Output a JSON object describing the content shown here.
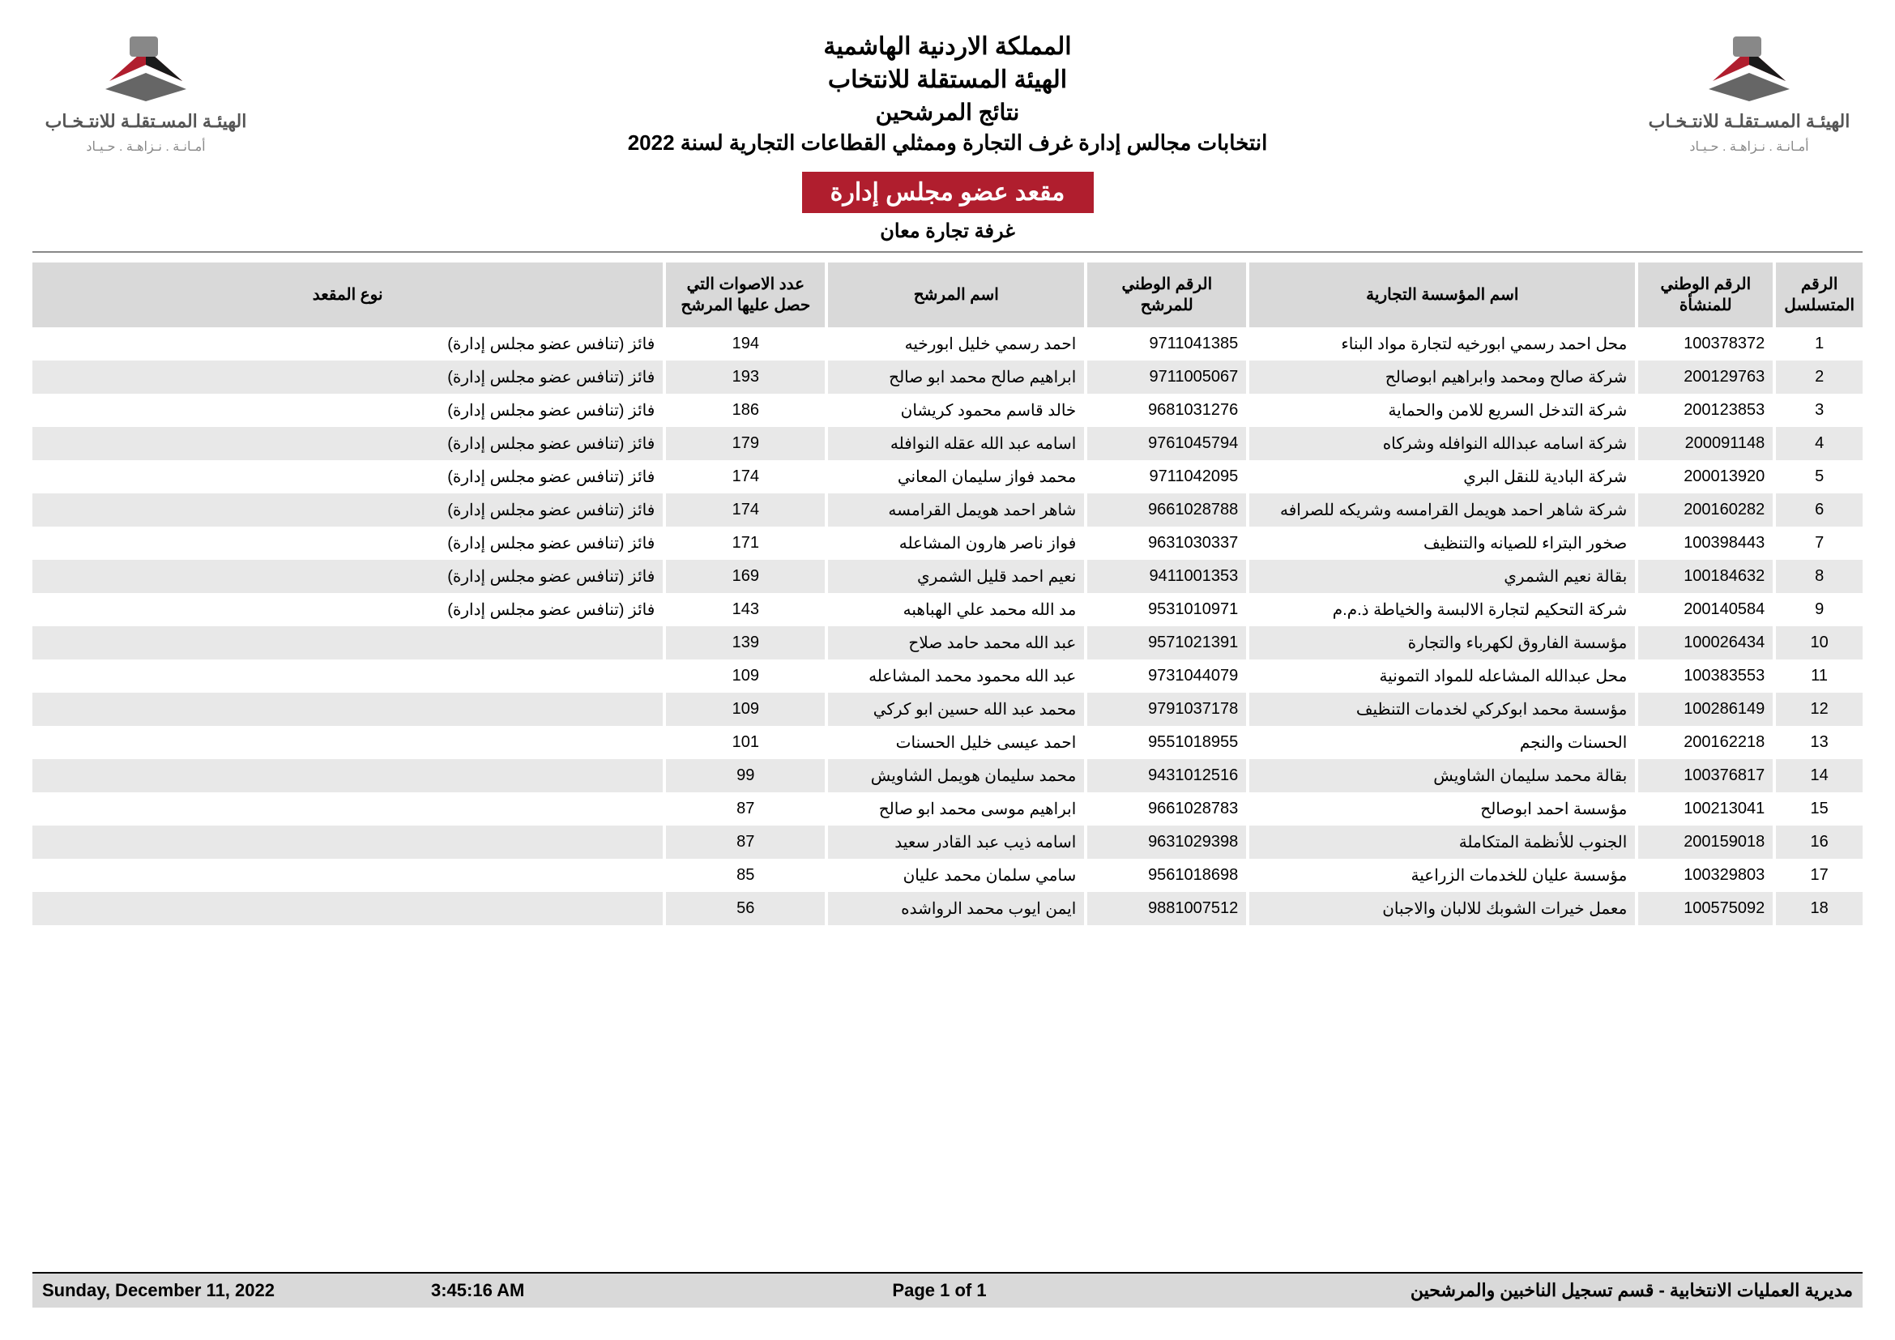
{
  "header": {
    "kingdom": "المملكة الاردنية الهاشمية",
    "commission": "الهيئة المستقلة للانتخاب",
    "results": "نتائج المرشحين",
    "election": "انتخابات مجالس إدارة غرف التجارة وممثلي القطاعات التجارية لسنة 2022",
    "logo_main": "الهيئـة المسـتقلـة\nللانتـخـاب",
    "logo_sub": "أمـانـة . نـزاهـة . حـيـاد"
  },
  "red_bar": "مقعد عضو مجلس إدارة",
  "chamber": "غرفة تجارة معان",
  "columns": {
    "serial": "الرقم المتسلسل",
    "est_natid": "الرقم الوطني للمنشأة",
    "est_name": "اسم المؤسسة التجارية",
    "cand_natid": "الرقم الوطني للمرشح",
    "cand_name": "اسم المرشح",
    "votes": "عدد الاصوات التي حصل عليها المرشح",
    "seat_type": "نوع المقعد"
  },
  "rows": [
    {
      "serial": "1",
      "est_natid": "100378372",
      "est_name": "محل احمد رسمي ابورخيه لتجارة مواد البناء",
      "cand_natid": "9711041385",
      "cand_name": "احمد رسمي خليل ابورخيه",
      "votes": "194",
      "seat_type": "فائز (تنافس عضو مجلس إدارة)"
    },
    {
      "serial": "2",
      "est_natid": "200129763",
      "est_name": "شركة صالح ومحمد وابراهيم ابوصالح",
      "cand_natid": "9711005067",
      "cand_name": "ابراهيم صالح محمد ابو صالح",
      "votes": "193",
      "seat_type": "فائز (تنافس عضو مجلس إدارة)"
    },
    {
      "serial": "3",
      "est_natid": "200123853",
      "est_name": "شركة التدخل السريع للامن والحماية",
      "cand_natid": "9681031276",
      "cand_name": "خالد قاسم محمود كريشان",
      "votes": "186",
      "seat_type": "فائز (تنافس عضو مجلس إدارة)"
    },
    {
      "serial": "4",
      "est_natid": "200091148",
      "est_name": "شركة اسامه عبدالله النوافله وشركاه",
      "cand_natid": "9761045794",
      "cand_name": "اسامه عبد الله عقله النوافله",
      "votes": "179",
      "seat_type": "فائز (تنافس عضو مجلس إدارة)"
    },
    {
      "serial": "5",
      "est_natid": "200013920",
      "est_name": "شركة البادية للنقل البري",
      "cand_natid": "9711042095",
      "cand_name": "محمد فواز سليمان المعاني",
      "votes": "174",
      "seat_type": "فائز (تنافس عضو مجلس إدارة)"
    },
    {
      "serial": "6",
      "est_natid": "200160282",
      "est_name": "شركة شاهر احمد هويمل القرامسه وشريكه للصرافه",
      "cand_natid": "9661028788",
      "cand_name": "شاهر احمد هويمل القرامسه",
      "votes": "174",
      "seat_type": "فائز (تنافس عضو مجلس إدارة)"
    },
    {
      "serial": "7",
      "est_natid": "100398443",
      "est_name": "صخور البتراء للصيانه والتنظيف",
      "cand_natid": "9631030337",
      "cand_name": "فواز ناصر هارون المشاعله",
      "votes": "171",
      "seat_type": "فائز (تنافس عضو مجلس إدارة)"
    },
    {
      "serial": "8",
      "est_natid": "100184632",
      "est_name": "بقالة نعيم الشمري",
      "cand_natid": "9411001353",
      "cand_name": "نعيم احمد قليل الشمري",
      "votes": "169",
      "seat_type": "فائز (تنافس عضو مجلس إدارة)"
    },
    {
      "serial": "9",
      "est_natid": "200140584",
      "est_name": "شركة التحكيم لتجارة الالبسة والخياطة ذ.م.م",
      "cand_natid": "9531010971",
      "cand_name": "مد الله محمد علي الهباهبه",
      "votes": "143",
      "seat_type": "فائز (تنافس عضو مجلس إدارة)"
    },
    {
      "serial": "10",
      "est_natid": "100026434",
      "est_name": "مؤسسة الفاروق لكهرباء والتجارة",
      "cand_natid": "9571021391",
      "cand_name": "عبد الله محمد حامد صلاح",
      "votes": "139",
      "seat_type": ""
    },
    {
      "serial": "11",
      "est_natid": "100383553",
      "est_name": "محل عبدالله المشاعله للمواد التمونية",
      "cand_natid": "9731044079",
      "cand_name": "عبد الله محمود محمد المشاعله",
      "votes": "109",
      "seat_type": ""
    },
    {
      "serial": "12",
      "est_natid": "100286149",
      "est_name": "مؤسسة محمد ابوكركي لخدمات التنظيف",
      "cand_natid": "9791037178",
      "cand_name": "محمد عبد الله حسين ابو كركي",
      "votes": "109",
      "seat_type": ""
    },
    {
      "serial": "13",
      "est_natid": "200162218",
      "est_name": "الحسنات والنجم",
      "cand_natid": "9551018955",
      "cand_name": "احمد عيسى خليل الحسنات",
      "votes": "101",
      "seat_type": ""
    },
    {
      "serial": "14",
      "est_natid": "100376817",
      "est_name": "بقالة محمد سليمان الشاويش",
      "cand_natid": "9431012516",
      "cand_name": "محمد سليمان هويمل الشاويش",
      "votes": "99",
      "seat_type": ""
    },
    {
      "serial": "15",
      "est_natid": "100213041",
      "est_name": "مؤسسة احمد ابوصالح",
      "cand_natid": "9661028783",
      "cand_name": "ابراهيم موسى محمد ابو صالح",
      "votes": "87",
      "seat_type": ""
    },
    {
      "serial": "16",
      "est_natid": "200159018",
      "est_name": "الجنوب للأنظمة المتكاملة",
      "cand_natid": "9631029398",
      "cand_name": "اسامه ذيب عبد القادر سعيد",
      "votes": "87",
      "seat_type": ""
    },
    {
      "serial": "17",
      "est_natid": "100329803",
      "est_name": "مؤسسة عليان للخدمات الزراعية",
      "cand_natid": "9561018698",
      "cand_name": "سامي سلمان محمد عليان",
      "votes": "85",
      "seat_type": ""
    },
    {
      "serial": "18",
      "est_natid": "100575092",
      "est_name": "معمل خيرات الشوبك للالبان والاجبان",
      "cand_natid": "9881007512",
      "cand_name": "ايمن ايوب محمد الرواشده",
      "votes": "56",
      "seat_type": ""
    }
  ],
  "footer": {
    "date": "Sunday, December 11, 2022",
    "time": "3:45:16 AM",
    "page": "Page 1 of 1",
    "dept": "مديرية العمليات الانتخابية - قسم تسجيل الناخبين والمرشحين"
  },
  "colors": {
    "red": "#b01e2e",
    "header_bg": "#d9d9d9",
    "row_alt": "#e8e8e8"
  }
}
